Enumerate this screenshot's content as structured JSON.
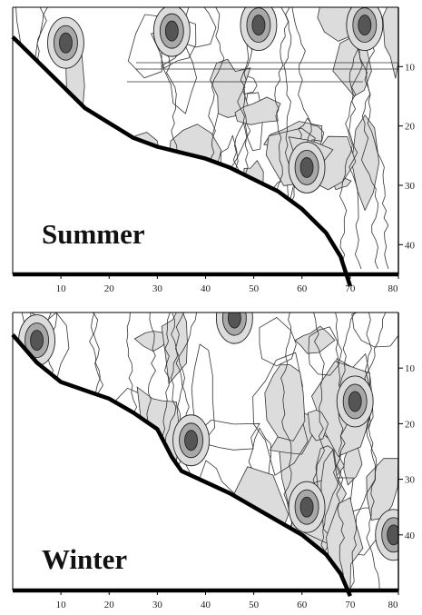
{
  "chart_data": [
    {
      "type": "heatmap",
      "title": "",
      "annotation": "Summer",
      "xlabel": "",
      "ylabel": "",
      "xlim": [
        0,
        80
      ],
      "ylim": [
        0,
        45
      ],
      "x_ticks": [
        10,
        20,
        30,
        40,
        50,
        60,
        70,
        80
      ],
      "y_ticks": [
        10,
        20,
        30,
        40
      ],
      "y_axis": "right",
      "y_reversed": true,
      "grid": false,
      "boundary": [
        [
          0,
          5
        ],
        [
          5,
          9
        ],
        [
          10,
          13
        ],
        [
          15,
          17
        ],
        [
          20,
          19.5
        ],
        [
          25,
          22
        ],
        [
          30,
          23.5
        ],
        [
          35,
          24.5
        ],
        [
          40,
          25.5
        ],
        [
          45,
          27
        ],
        [
          50,
          29
        ],
        [
          55,
          31
        ],
        [
          60,
          34
        ],
        [
          65,
          38
        ],
        [
          68,
          42
        ],
        [
          70,
          47
        ]
      ],
      "fill_levels": [
        "#ffffff",
        "#dcdcdc",
        "#a8a8a8",
        "#555555"
      ],
      "hotspots": [
        [
          11,
          6
        ],
        [
          33,
          4
        ],
        [
          51,
          3
        ],
        [
          73,
          3
        ],
        [
          61,
          27
        ]
      ]
    },
    {
      "type": "heatmap",
      "title": "",
      "annotation": "Winter",
      "xlabel": "",
      "ylabel": "",
      "xlim": [
        0,
        80
      ],
      "ylim": [
        0,
        50
      ],
      "x_ticks": [
        10,
        20,
        30,
        40,
        50,
        60,
        70,
        80
      ],
      "y_ticks": [
        10,
        20,
        30,
        40
      ],
      "y_axis": "right",
      "y_reversed": true,
      "grid": false,
      "boundary": [
        [
          0,
          4
        ],
        [
          5,
          9
        ],
        [
          10,
          12.5
        ],
        [
          15,
          14
        ],
        [
          20,
          15.5
        ],
        [
          25,
          18
        ],
        [
          30,
          21
        ],
        [
          33,
          26
        ],
        [
          35,
          28.5
        ],
        [
          40,
          30.5
        ],
        [
          45,
          32.5
        ],
        [
          50,
          35
        ],
        [
          55,
          37.5
        ],
        [
          60,
          40
        ],
        [
          65,
          43.5
        ],
        [
          68,
          47
        ],
        [
          70,
          51
        ]
      ],
      "fill_levels": [
        "#ffffff",
        "#dcdcdc",
        "#a8a8a8",
        "#555555"
      ],
      "hotspots": [
        [
          71,
          16
        ],
        [
          37,
          23
        ],
        [
          61,
          35
        ],
        [
          5,
          5
        ],
        [
          46,
          1
        ],
        [
          79,
          40
        ]
      ]
    }
  ]
}
